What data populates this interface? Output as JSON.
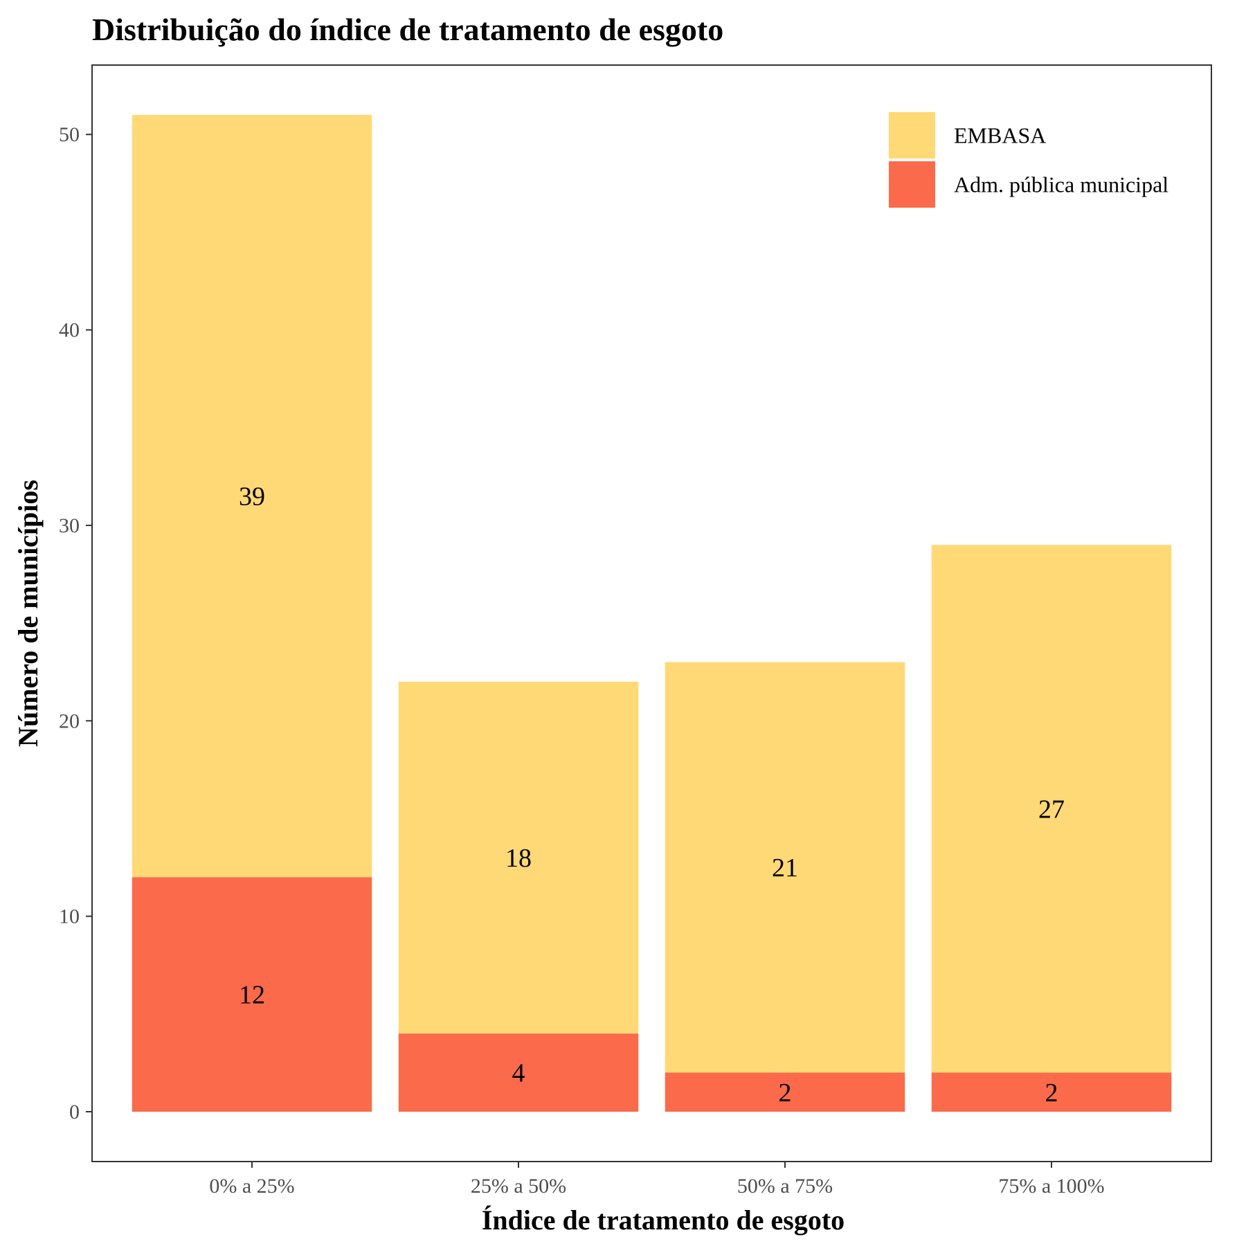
{
  "chart_data": {
    "type": "bar",
    "stacked": true,
    "title": "Distribuição do índice de tratamento de esgoto",
    "xlabel": "Índice de tratamento de esgoto",
    "ylabel": "Número de municípios",
    "categories": [
      "0% a 25%",
      "25% a 50%",
      "50% a 75%",
      "75% a 100%"
    ],
    "series": [
      {
        "name": "Adm. pública municipal",
        "values": [
          12,
          4,
          2,
          2
        ],
        "color": "#FB6A4A"
      },
      {
        "name": "EMBASA",
        "values": [
          39,
          18,
          21,
          27
        ],
        "color": "#FED976"
      }
    ],
    "ylim": [
      -2.55,
      53.55
    ],
    "yticks": [
      0,
      10,
      20,
      30,
      40,
      50
    ],
    "grid": false,
    "legend_position": "top-right",
    "legend_order": [
      "EMBASA",
      "Adm. pública municipal"
    ]
  }
}
